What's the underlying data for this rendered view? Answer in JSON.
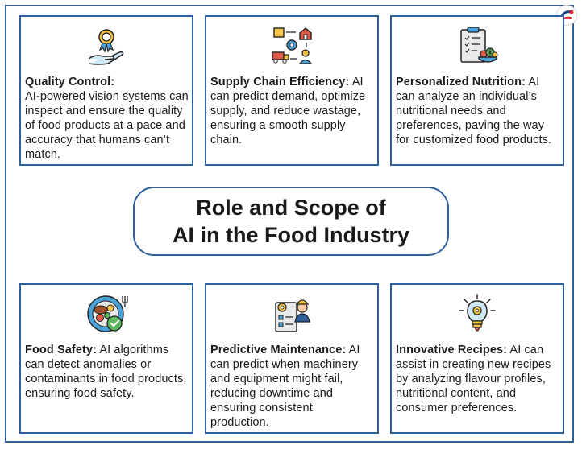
{
  "title": {
    "line1": "Role and Scope of",
    "line2": "AI in the Food Industry"
  },
  "cards": [
    {
      "icon": "quality-badge-hand-icon",
      "heading": "Quality Control:",
      "body": "AI-powered vision systems can inspect and ensure the quality of food products at a pace and accuracy that humans can’t match."
    },
    {
      "icon": "supply-chain-icon",
      "heading": "Supply Chain Efficiency:",
      "body": " AI can predict demand, optimize supply, and reduce wastage, ensuring a smooth supply chain."
    },
    {
      "icon": "nutrition-clipboard-icon",
      "heading": "Personalized Nutrition:",
      "body": " AI can analyze an individual’s nutritional needs and preferences, paving the way for customized food products."
    },
    {
      "icon": "food-safety-plate-icon",
      "heading": "Food Safety:",
      "body": " AI algorithms can detect anomalies or contaminants in food products, ensuring food safety."
    },
    {
      "icon": "maintenance-worker-icon",
      "heading": "Predictive Maintenance:",
      "body": " AI can predict when machinery and equipment might fail, reducing downtime and ensuring consistent production."
    },
    {
      "icon": "idea-bulb-icon",
      "heading": "Innovative Recipes:",
      "body": " AI can assist in creating new recipes by analyzing flavour profiles, nutritional content, and consumer preferences."
    }
  ],
  "colors": {
    "border": "#2d5f9a",
    "text": "#1a1a1a"
  }
}
